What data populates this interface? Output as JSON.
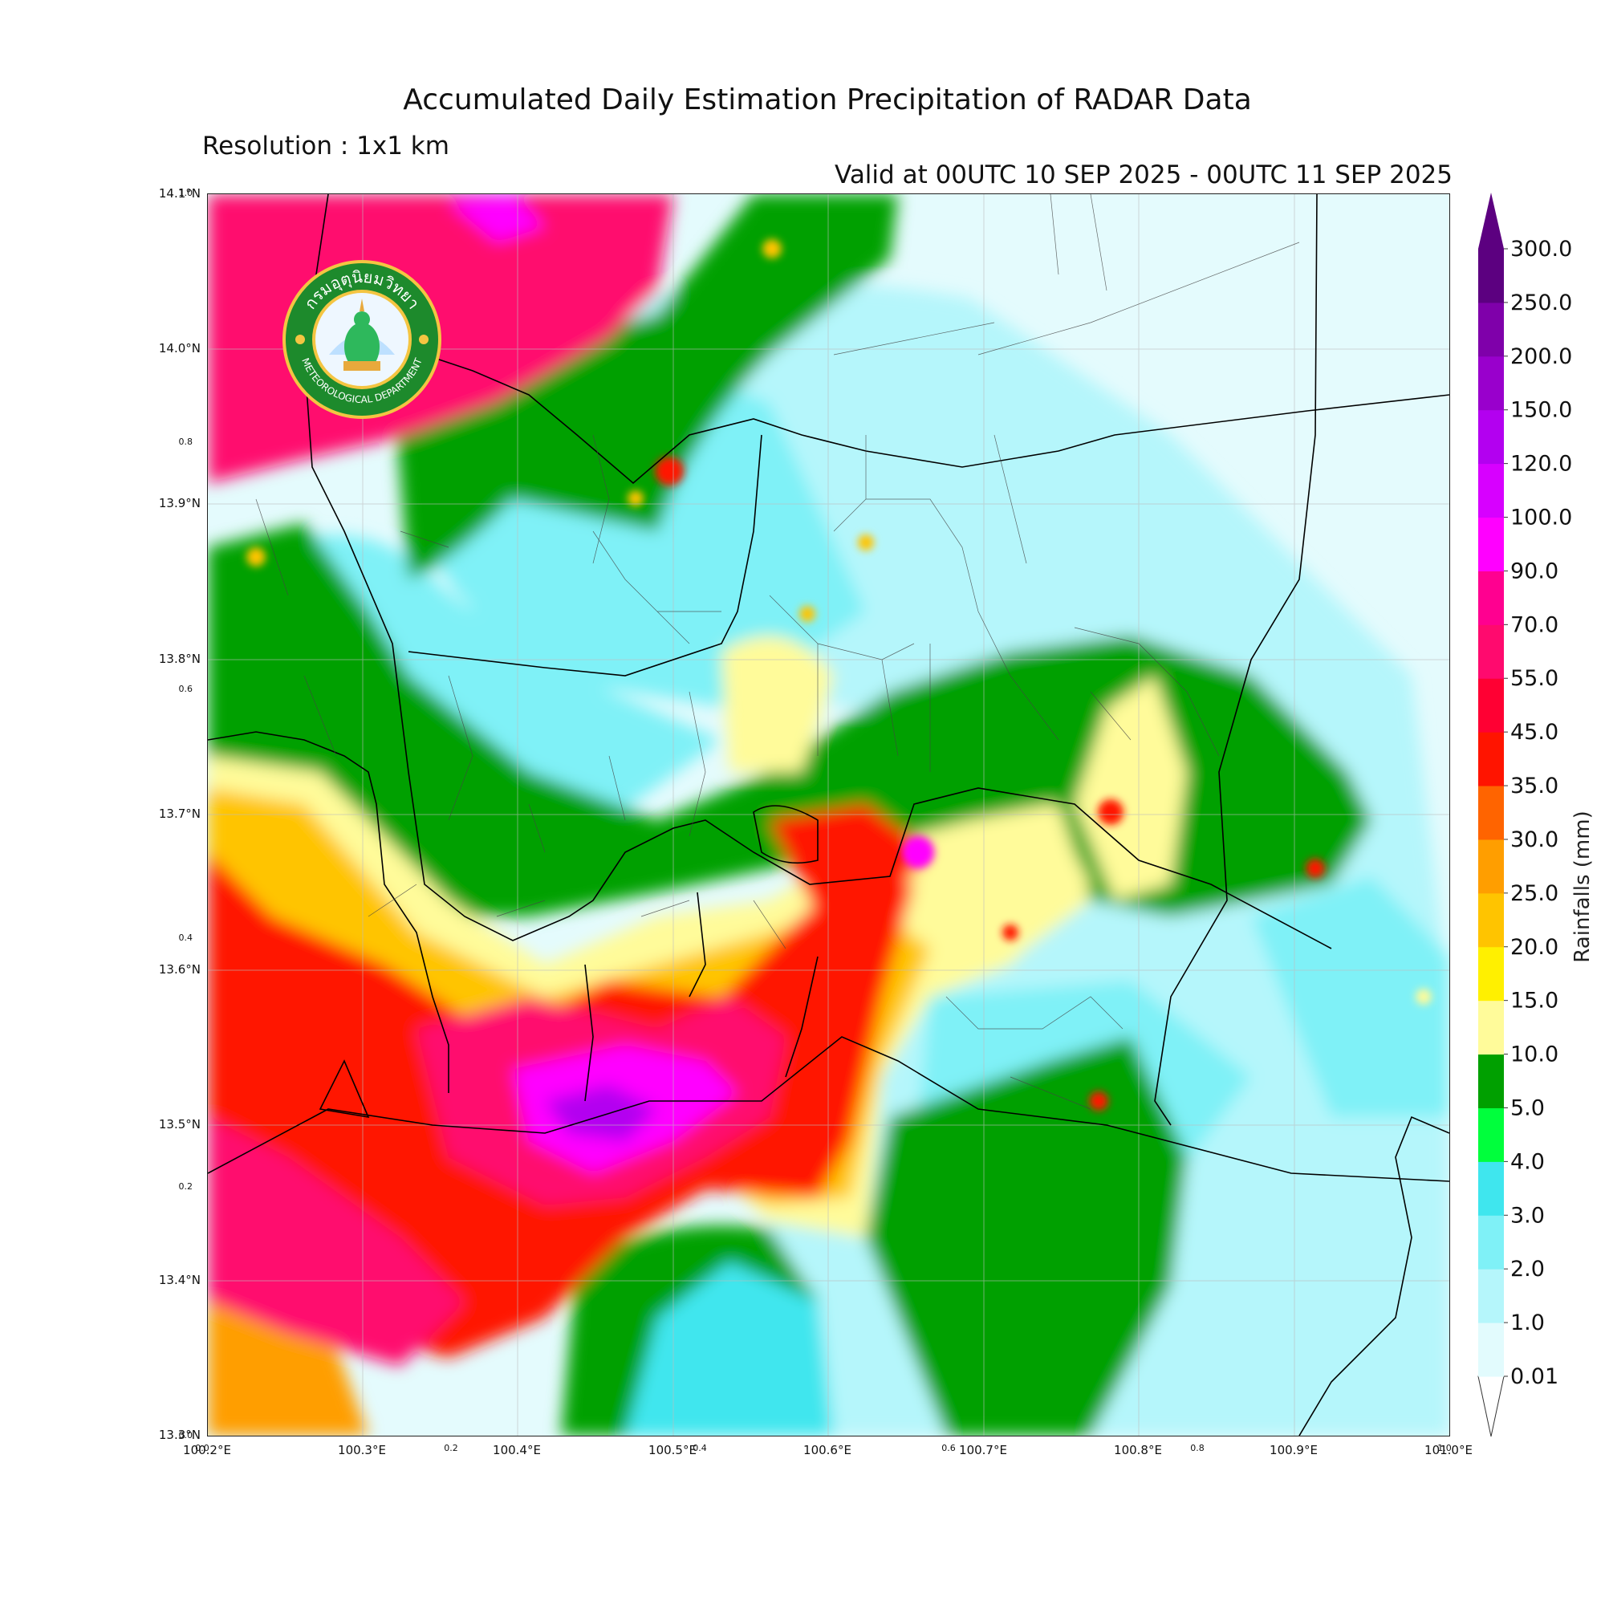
{
  "header": {
    "title": "Accumulated Daily Estimation Precipitation of RADAR Data",
    "resolution": "Resolution : 1x1 km",
    "valid": "Valid at 00UTC 10 SEP 2025 - 00UTC 11 SEP 2025"
  },
  "logo": {
    "thai_text": "กรมอุตุนิยมวิทยา",
    "english_text": "METEOROLOGICAL DEPARTMENT"
  },
  "map": {
    "lon_ticks": [
      "100.2°E",
      "100.3°E",
      "100.4°E",
      "100.5°E",
      "100.6°E",
      "100.7°E",
      "100.8°E",
      "100.9°E",
      "101.0°E"
    ],
    "lat_ticks": [
      "14.1°N",
      "14.0°N",
      "13.9°N",
      "13.8°N",
      "13.7°N",
      "13.6°N",
      "13.5°N",
      "13.4°N",
      "13.3°N"
    ],
    "lon_range": [
      100.2,
      101.0
    ],
    "lat_range": [
      13.3,
      14.1
    ],
    "inset_x_ticks": [
      "0.0",
      "0.2",
      "0.4",
      "0.6",
      "0.8",
      "1.0"
    ],
    "inset_y_ticks": [
      "0.0",
      "0.2",
      "0.4",
      "0.6",
      "0.8",
      "1.0"
    ]
  },
  "colorbar": {
    "title": "Rainfalls (mm)",
    "levels": [
      "0.01",
      "1.0",
      "2.0",
      "3.0",
      "4.0",
      "5.0",
      "10.0",
      "15.0",
      "20.0",
      "25.0",
      "30.0",
      "35.0",
      "45.0",
      "55.0",
      "70.0",
      "90.0",
      "100.0",
      "120.0",
      "150.0",
      "200.0",
      "250.0",
      "300.0"
    ],
    "colors": [
      "#e2fbfd",
      "#b5f6fb",
      "#7ff1f7",
      "#3fe6ee",
      "#00ff3c",
      "#00a000",
      "#fffb9a",
      "#fff000",
      "#ffc400",
      "#ff9e00",
      "#ff6400",
      "#ff1400",
      "#ff0033",
      "#ff0a6e",
      "#ff0090",
      "#ff00ff",
      "#d700ff",
      "#b300f0",
      "#9900cc",
      "#7f00aa",
      "#5c0080"
    ]
  }
}
